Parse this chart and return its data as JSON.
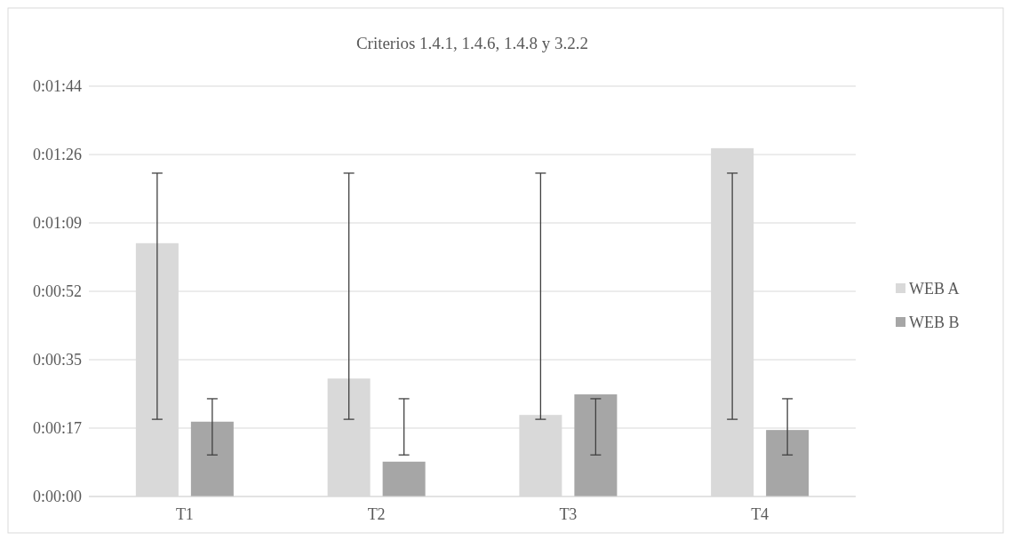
{
  "chart_data": {
    "type": "bar",
    "title": "Criterios 1.4.1, 1.4.6, 1.4.8 y 3.2.2",
    "categories": [
      "T1",
      "T2",
      "T3",
      "T4"
    ],
    "series": [
      {
        "name": "WEB A",
        "color": "#d9d9d9",
        "values": [
          64.0,
          29.8,
          20.6,
          88.0
        ],
        "errors": [
          [
            19.5,
            81.7
          ],
          [
            19.5,
            81.7
          ],
          [
            19.5,
            81.7
          ],
          [
            19.5,
            81.7
          ]
        ]
      },
      {
        "name": "WEB B",
        "color": "#a6a6a6",
        "values": [
          18.9,
          8.8,
          25.8,
          16.8
        ],
        "errors": [
          [
            10.5,
            24.7
          ],
          [
            10.5,
            24.7
          ],
          [
            10.5,
            24.7
          ],
          [
            10.5,
            24.7
          ]
        ]
      }
    ],
    "ylim": [
      0,
      103.68
    ],
    "yticks": [
      {
        "value": 0,
        "label": "0:00:00"
      },
      {
        "value": 17.28,
        "label": "0:00:17"
      },
      {
        "value": 34.56,
        "label": "0:00:35"
      },
      {
        "value": 51.84,
        "label": "0:00:52"
      },
      {
        "value": 69.12,
        "label": "0:01:09"
      },
      {
        "value": 86.4,
        "label": "0:01:26"
      },
      {
        "value": 103.68,
        "label": "0:01:44"
      }
    ],
    "grid": "y",
    "legend": "right"
  }
}
